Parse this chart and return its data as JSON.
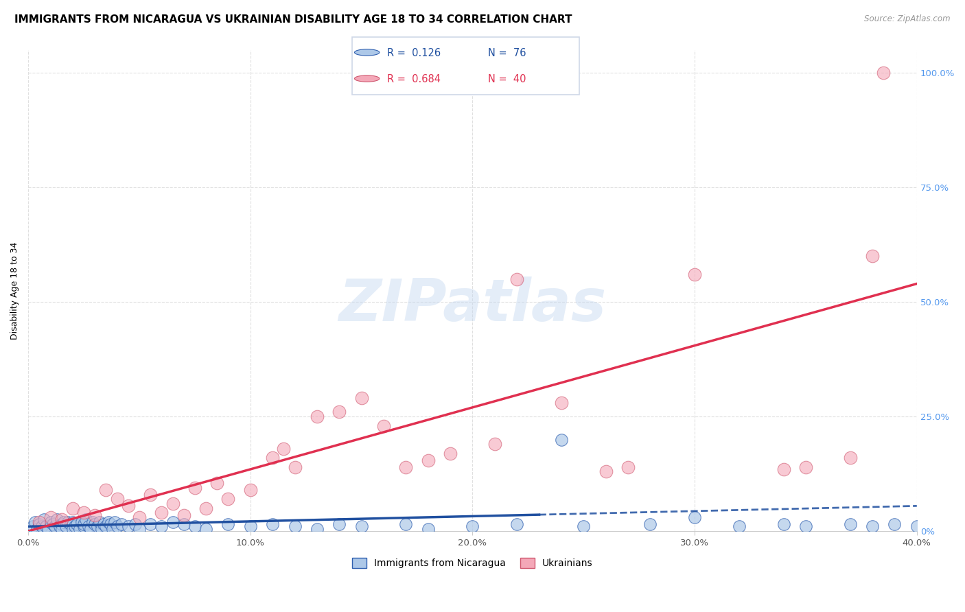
{
  "title": "IMMIGRANTS FROM NICARAGUA VS UKRAINIAN DISABILITY AGE 18 TO 34 CORRELATION CHART",
  "source": "Source: ZipAtlas.com",
  "ylabel": "Disability Age 18 to 34",
  "x_tick_labels": [
    "0.0%",
    "10.0%",
    "20.0%",
    "30.0%",
    "40.0%"
  ],
  "x_tick_values": [
    0,
    10,
    20,
    30,
    40
  ],
  "y_tick_values": [
    0,
    25,
    50,
    75,
    100
  ],
  "y_tick_labels_right": [
    "0%",
    "25.0%",
    "50.0%",
    "75.0%",
    "100.0%"
  ],
  "xlim": [
    0,
    40
  ],
  "ylim": [
    0,
    105
  ],
  "blue_color": "#adc8e8",
  "pink_color": "#f4a8b8",
  "blue_edge_color": "#3060b0",
  "pink_edge_color": "#d05870",
  "blue_line_color": "#2050a0",
  "pink_line_color": "#e03050",
  "grid_color": "#e0e0e0",
  "right_tick_color": "#5599ee",
  "legend_label1": "Immigrants from Nicaragua",
  "legend_label2": "Ukrainians",
  "blue_R": "0.126",
  "blue_N": "76",
  "pink_R": "0.684",
  "pink_N": "40",
  "blue_scatter_x": [
    0.2,
    0.3,
    0.4,
    0.5,
    0.6,
    0.7,
    0.8,
    0.9,
    1.0,
    1.1,
    1.2,
    1.3,
    1.4,
    1.5,
    1.5,
    1.6,
    1.7,
    1.8,
    1.9,
    2.0,
    2.0,
    2.1,
    2.2,
    2.3,
    2.4,
    2.5,
    2.5,
    2.6,
    2.7,
    2.8,
    2.9,
    3.0,
    3.1,
    3.2,
    3.3,
    3.4,
    3.5,
    3.6,
    3.7,
    3.8,
    3.9,
    4.0,
    4.2,
    4.5,
    4.8,
    5.0,
    5.5,
    6.0,
    6.5,
    7.0,
    7.5,
    8.0,
    9.0,
    10.0,
    11.0,
    12.0,
    13.0,
    14.0,
    15.0,
    17.0,
    18.0,
    20.0,
    22.0,
    24.0,
    25.0,
    28.0,
    30.0,
    32.0,
    34.0,
    35.0,
    37.0,
    38.0,
    39.0,
    40.0,
    40.5,
    41.0
  ],
  "blue_scatter_y": [
    1.0,
    2.0,
    0.5,
    1.5,
    1.0,
    2.5,
    1.0,
    0.5,
    2.0,
    1.5,
    1.0,
    2.5,
    1.0,
    1.5,
    0.5,
    2.0,
    1.0,
    2.0,
    1.5,
    0.5,
    2.0,
    1.0,
    1.5,
    0.5,
    2.0,
    1.0,
    1.5,
    2.5,
    1.0,
    0.5,
    2.0,
    1.5,
    1.0,
    2.0,
    0.5,
    1.5,
    1.0,
    2.0,
    1.5,
    0.5,
    2.0,
    1.0,
    1.5,
    1.0,
    1.5,
    0.5,
    1.5,
    1.0,
    2.0,
    1.5,
    1.0,
    0.5,
    1.5,
    1.0,
    1.5,
    1.0,
    0.5,
    1.5,
    1.0,
    1.5,
    0.5,
    1.0,
    1.5,
    20.0,
    1.0,
    1.5,
    3.0,
    1.0,
    1.5,
    1.0,
    1.5,
    1.0,
    1.5,
    1.0,
    2.0,
    1.5
  ],
  "pink_scatter_x": [
    0.5,
    1.0,
    1.5,
    2.0,
    2.5,
    3.0,
    3.5,
    4.0,
    4.5,
    5.0,
    5.5,
    6.0,
    6.5,
    7.0,
    7.5,
    8.0,
    8.5,
    9.0,
    10.0,
    11.0,
    11.5,
    12.0,
    13.0,
    14.0,
    15.0,
    16.0,
    17.0,
    18.0,
    19.0,
    21.0,
    22.0,
    24.0,
    26.0,
    27.0,
    30.0,
    34.0,
    35.0,
    37.0,
    38.0,
    38.5
  ],
  "pink_scatter_y": [
    2.0,
    3.0,
    2.5,
    5.0,
    4.0,
    3.5,
    9.0,
    7.0,
    5.5,
    3.0,
    8.0,
    4.0,
    6.0,
    3.5,
    9.5,
    5.0,
    10.5,
    7.0,
    9.0,
    16.0,
    18.0,
    14.0,
    25.0,
    26.0,
    29.0,
    23.0,
    14.0,
    15.5,
    17.0,
    19.0,
    55.0,
    28.0,
    13.0,
    14.0,
    56.0,
    13.5,
    14.0,
    16.0,
    60.0,
    100.0
  ],
  "blue_line_x": [
    0,
    40
  ],
  "blue_line_y": [
    1.0,
    5.5
  ],
  "blue_line_solid_end_x": 23,
  "pink_line_x": [
    0,
    40
  ],
  "pink_line_y": [
    0,
    54
  ],
  "title_fontsize": 11,
  "axis_label_fontsize": 9,
  "tick_fontsize": 9.5,
  "watermark_text": "ZIPatlas",
  "watermark_color": "#c5d8f0"
}
